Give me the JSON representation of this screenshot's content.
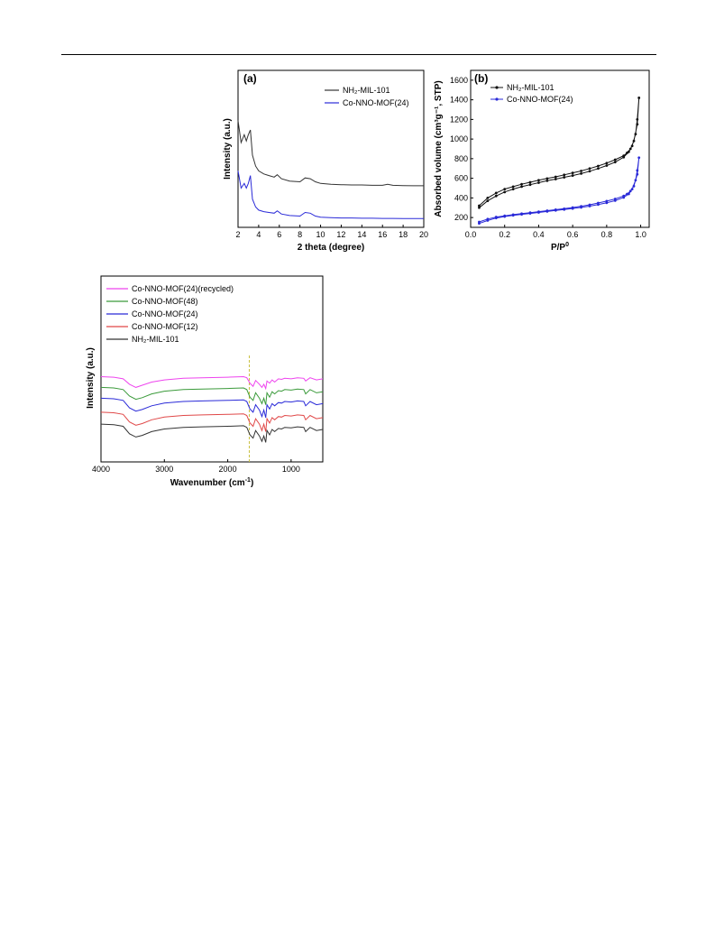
{
  "colors": {
    "black": "#333333",
    "blue": "#2a2ad8",
    "green": "#3a9a3a",
    "red": "#e04848",
    "magenta": "#ee44ee",
    "dash": "#c8c040"
  },
  "chart_data": [
    {
      "id": "a",
      "type": "line",
      "panel_label": "(a)",
      "xlabel": "2 theta (degree)",
      "ylabel": "Intensity (a.u.)",
      "xlim": [
        2,
        20
      ],
      "ylim": [
        0,
        10
      ],
      "xticks": [
        2,
        4,
        6,
        8,
        10,
        12,
        14,
        16,
        18,
        20
      ],
      "xtick_labels": [
        "2",
        "4",
        "6",
        "8",
        "10",
        "12",
        "14",
        "16",
        "18",
        "20"
      ],
      "legend_position": "top-right",
      "series": [
        {
          "name": "NH₂-MIL-101",
          "color": "#333333",
          "x": [
            2,
            2.3,
            2.6,
            2.8,
            3.0,
            3.2,
            3.4,
            3.7,
            4.0,
            4.5,
            5.0,
            5.5,
            5.8,
            6.2,
            7.0,
            8.0,
            8.5,
            9.0,
            9.5,
            10.0,
            11,
            12,
            13,
            14,
            15,
            16,
            16.5,
            17,
            18,
            19,
            20
          ],
          "y": [
            6.8,
            5.4,
            5.9,
            5.5,
            5.9,
            6.2,
            4.6,
            3.9,
            3.6,
            3.4,
            3.3,
            3.2,
            3.35,
            3.1,
            2.95,
            2.9,
            3.15,
            3.1,
            2.9,
            2.8,
            2.75,
            2.72,
            2.7,
            2.7,
            2.68,
            2.68,
            2.75,
            2.68,
            2.66,
            2.65,
            2.65
          ]
        },
        {
          "name": "Co-NNO-MOF(24)",
          "color": "#2a2ad8",
          "x": [
            2,
            2.3,
            2.6,
            2.8,
            3.0,
            3.2,
            3.4,
            3.7,
            4.0,
            4.5,
            5.0,
            5.5,
            5.8,
            6.2,
            7.0,
            8.0,
            8.5,
            9.0,
            9.5,
            10.0,
            11,
            12,
            13,
            14,
            15,
            16,
            17,
            18,
            19,
            20
          ],
          "y": [
            3.6,
            2.5,
            2.8,
            2.5,
            2.8,
            3.3,
            1.8,
            1.3,
            1.1,
            1.0,
            0.95,
            0.9,
            1.05,
            0.85,
            0.75,
            0.72,
            0.95,
            0.9,
            0.72,
            0.65,
            0.62,
            0.6,
            0.6,
            0.58,
            0.58,
            0.57,
            0.57,
            0.56,
            0.56,
            0.56
          ]
        }
      ]
    },
    {
      "id": "b",
      "type": "line",
      "panel_label": "(b)",
      "xlabel": "P/P",
      "xlabel_sup": "0",
      "ylabel": "Absorbed volume (cm³g⁻¹, STP)",
      "xlim": [
        0,
        1.05
      ],
      "ylim": [
        100,
        1700
      ],
      "xticks": [
        0.0,
        0.2,
        0.4,
        0.6,
        0.8,
        1.0
      ],
      "xtick_labels": [
        "0.0",
        "0.2",
        "0.4",
        "0.6",
        "0.8",
        "1.0"
      ],
      "yticks": [
        200,
        400,
        600,
        800,
        1000,
        1200,
        1400,
        1600
      ],
      "ytick_labels": [
        "200",
        "400",
        "600",
        "800",
        "1000",
        "1200",
        "1400",
        "1600"
      ],
      "legend_position": "top-left",
      "series": [
        {
          "name": "NH₂-MIL-101",
          "color": "#111111",
          "x": [
            0.05,
            0.1,
            0.15,
            0.2,
            0.25,
            0.3,
            0.35,
            0.4,
            0.45,
            0.5,
            0.55,
            0.6,
            0.65,
            0.7,
            0.75,
            0.8,
            0.85,
            0.9,
            0.93,
            0.95,
            0.97,
            0.98,
            0.99,
            0.98,
            0.96,
            0.94,
            0.92,
            0.9,
            0.85,
            0.8,
            0.75,
            0.7,
            0.65,
            0.6,
            0.55,
            0.5,
            0.45,
            0.4,
            0.35,
            0.3,
            0.25,
            0.2,
            0.15,
            0.1,
            0.05
          ],
          "y": [
            300,
            370,
            420,
            460,
            490,
            515,
            535,
            555,
            575,
            592,
            610,
            628,
            648,
            672,
            700,
            730,
            765,
            815,
            870,
            930,
            1050,
            1200,
            1420,
            1150,
            980,
            900,
            860,
            830,
            790,
            755,
            725,
            700,
            675,
            655,
            635,
            615,
            598,
            580,
            560,
            540,
            515,
            490,
            450,
            400,
            320
          ]
        },
        {
          "name": "Co-NNO-MOF(24)",
          "color": "#2a2ad8",
          "x": [
            0.05,
            0.1,
            0.15,
            0.2,
            0.25,
            0.3,
            0.35,
            0.4,
            0.45,
            0.5,
            0.55,
            0.6,
            0.65,
            0.7,
            0.75,
            0.8,
            0.85,
            0.9,
            0.93,
            0.95,
            0.97,
            0.98,
            0.99,
            0.98,
            0.96,
            0.94,
            0.92,
            0.9,
            0.85,
            0.8,
            0.75,
            0.7,
            0.65,
            0.6,
            0.55,
            0.5,
            0.45,
            0.4,
            0.35,
            0.3,
            0.25,
            0.2,
            0.15,
            0.1,
            0.05
          ],
          "y": [
            140,
            170,
            195,
            210,
            222,
            232,
            242,
            252,
            262,
            272,
            282,
            292,
            303,
            316,
            332,
            350,
            372,
            405,
            440,
            490,
            580,
            680,
            810,
            640,
            520,
            470,
            440,
            420,
            390,
            368,
            348,
            330,
            315,
            302,
            290,
            280,
            270,
            260,
            250,
            240,
            230,
            218,
            205,
            185,
            155
          ]
        }
      ]
    },
    {
      "id": "c",
      "type": "line",
      "xlabel": "Wavenumber (cm",
      "xlabel_sup": "-1",
      "xlabel_close": ")",
      "ylabel": "Intensity (a.u.)",
      "xlim": [
        4000,
        500
      ],
      "ylim": [
        0,
        10
      ],
      "xticks": [
        4000,
        3000,
        2000,
        1000
      ],
      "xtick_labels": [
        "4000",
        "3000",
        "2000",
        "1000"
      ],
      "reference_line_x": 1660,
      "legend_position": "top-left",
      "series": [
        {
          "name": "Co-NNO-MOF(24)(recycled)",
          "color": "#ee44ee",
          "x": [
            4000,
            3800,
            3650,
            3550,
            3450,
            3350,
            3200,
            3000,
            2700,
            2400,
            2000,
            1750,
            1700,
            1650,
            1600,
            1560,
            1500,
            1460,
            1430,
            1400,
            1380,
            1340,
            1300,
            1260,
            1200,
            1150,
            1100,
            1000,
            900,
            800,
            770,
            700,
            600,
            500
          ],
          "y": [
            5.9,
            5.85,
            5.7,
            5.2,
            4.9,
            5.1,
            5.4,
            5.6,
            5.75,
            5.8,
            5.85,
            5.9,
            5.8,
            5.3,
            5.0,
            5.55,
            5.2,
            4.9,
            5.2,
            4.8,
            5.5,
            5.3,
            5.6,
            5.4,
            5.7,
            5.65,
            5.75,
            5.7,
            5.8,
            5.75,
            5.5,
            5.8,
            5.6,
            5.7
          ]
        },
        {
          "name": "Co-NNO-MOF(48)",
          "color": "#3a9a3a",
          "x": [
            4000,
            3800,
            3650,
            3550,
            3450,
            3350,
            3200,
            3000,
            2700,
            2400,
            2000,
            1750,
            1700,
            1650,
            1600,
            1560,
            1500,
            1460,
            1430,
            1400,
            1380,
            1340,
            1300,
            1260,
            1200,
            1150,
            1100,
            1000,
            900,
            800,
            770,
            700,
            600,
            500
          ],
          "y": [
            4.9,
            4.85,
            4.7,
            4.1,
            3.8,
            3.95,
            4.3,
            4.55,
            4.7,
            4.75,
            4.8,
            4.85,
            4.7,
            4.0,
            3.7,
            4.4,
            3.9,
            3.4,
            3.9,
            3.3,
            4.4,
            4.0,
            4.5,
            4.3,
            4.6,
            4.55,
            4.7,
            4.65,
            4.75,
            4.7,
            4.3,
            4.7,
            4.4,
            4.5
          ]
        },
        {
          "name": "Co-NNO-MOF(24)",
          "color": "#2a2ad8",
          "x": [
            4000,
            3800,
            3650,
            3550,
            3450,
            3350,
            3200,
            3000,
            2700,
            2400,
            2000,
            1750,
            1700,
            1650,
            1600,
            1560,
            1500,
            1460,
            1430,
            1400,
            1380,
            1340,
            1300,
            1260,
            1200,
            1150,
            1100,
            1000,
            900,
            800,
            770,
            700,
            600,
            500
          ],
          "y": [
            3.9,
            3.85,
            3.7,
            3.0,
            2.7,
            2.85,
            3.2,
            3.45,
            3.6,
            3.65,
            3.7,
            3.75,
            3.6,
            2.9,
            2.6,
            3.3,
            2.8,
            2.2,
            2.8,
            2.1,
            3.3,
            2.9,
            3.4,
            3.2,
            3.5,
            3.45,
            3.6,
            3.55,
            3.65,
            3.6,
            3.2,
            3.6,
            3.3,
            3.4
          ]
        },
        {
          "name": "Co-NNO-MOF(12)",
          "color": "#e04848",
          "x": [
            4000,
            3800,
            3650,
            3550,
            3450,
            3350,
            3200,
            3000,
            2700,
            2400,
            2000,
            1750,
            1700,
            1650,
            1600,
            1560,
            1500,
            1460,
            1430,
            1400,
            1380,
            1340,
            1300,
            1260,
            1200,
            1150,
            1100,
            1000,
            900,
            800,
            770,
            700,
            600,
            500
          ],
          "y": [
            2.6,
            2.55,
            2.4,
            1.7,
            1.4,
            1.55,
            1.9,
            2.15,
            2.3,
            2.35,
            2.4,
            2.45,
            2.3,
            1.6,
            1.3,
            2.0,
            1.5,
            0.9,
            1.5,
            0.8,
            2.0,
            1.6,
            2.1,
            1.9,
            2.2,
            2.15,
            2.3,
            2.25,
            2.35,
            2.3,
            1.9,
            2.3,
            2.0,
            2.1
          ]
        },
        {
          "name": "NH₂-MIL-101",
          "color": "#333333",
          "x": [
            4000,
            3800,
            3650,
            3550,
            3450,
            3350,
            3200,
            3000,
            2700,
            2400,
            2000,
            1750,
            1700,
            1650,
            1600,
            1560,
            1500,
            1460,
            1430,
            1400,
            1380,
            1340,
            1300,
            1260,
            1200,
            1150,
            1100,
            1000,
            900,
            800,
            770,
            700,
            600,
            500
          ],
          "y": [
            1.5,
            1.45,
            1.3,
            0.6,
            0.3,
            0.45,
            0.8,
            1.05,
            1.2,
            1.25,
            1.3,
            1.35,
            1.2,
            0.5,
            0.2,
            0.9,
            0.4,
            -0.1,
            0.4,
            -0.2,
            0.9,
            0.5,
            1.0,
            0.8,
            1.1,
            1.05,
            1.2,
            1.15,
            1.25,
            1.2,
            0.8,
            1.2,
            0.9,
            1.0
          ]
        }
      ]
    }
  ]
}
